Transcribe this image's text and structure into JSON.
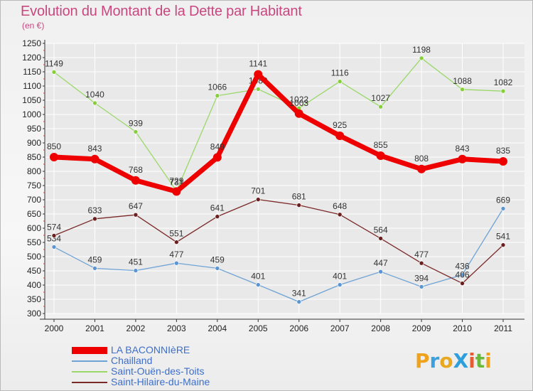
{
  "header": {
    "title": "Evolution du Montant de la Dette par Habitant",
    "subtitle": "(en €)"
  },
  "logo": {
    "text": "ProXiti"
  },
  "colors": {
    "title": "#c8477f",
    "legend_text": "#3d6fc9",
    "axis": "#333333",
    "grid": "#ffffff"
  },
  "chart_data": {
    "type": "line",
    "title": "Evolution du Montant de la Dette par Habitant",
    "subtitle": "(en €)",
    "x": [
      "2000",
      "2001",
      "2002",
      "2003",
      "2004",
      "2005",
      "2006",
      "2007",
      "2008",
      "2009",
      "2010",
      "2011"
    ],
    "ylim": [
      300,
      1250
    ],
    "yticks": [
      300,
      350,
      400,
      450,
      500,
      550,
      600,
      650,
      700,
      750,
      800,
      850,
      900,
      950,
      1000,
      1050,
      1100,
      1150,
      1200,
      1250
    ],
    "grid": true,
    "legend_position": "bottom-left",
    "series": [
      {
        "name": "LA BACONNIèRE",
        "color": "#ee0000",
        "marker": "#ee0000",
        "width": 7,
        "radius": 6,
        "values": [
          850,
          843,
          768,
          729,
          849,
          1141,
          1003,
          925,
          855,
          808,
          843,
          835
        ]
      },
      {
        "name": "Chailland",
        "color": "#6fa3d6",
        "marker": "#5b95d2",
        "width": 1.3,
        "radius": 3,
        "values": [
          534,
          459,
          451,
          477,
          459,
          401,
          341,
          401,
          447,
          394,
          436,
          669
        ]
      },
      {
        "name": "Saint-Ouën-des-Toits",
        "color": "#9bd86a",
        "marker": "#86cf3a",
        "width": 1.3,
        "radius": 3,
        "values": [
          1149,
          1040,
          939,
          731,
          1066,
          1089,
          1022,
          1116,
          1027,
          1198,
          1088,
          1082
        ]
      },
      {
        "name": "Saint-Hilaire-du-Maine",
        "color": "#7b2a2a",
        "marker": "#6b1f1f",
        "width": 1.3,
        "radius": 3,
        "values": [
          574,
          633,
          647,
          551,
          641,
          701,
          681,
          648,
          564,
          477,
          406,
          541
        ]
      }
    ]
  }
}
